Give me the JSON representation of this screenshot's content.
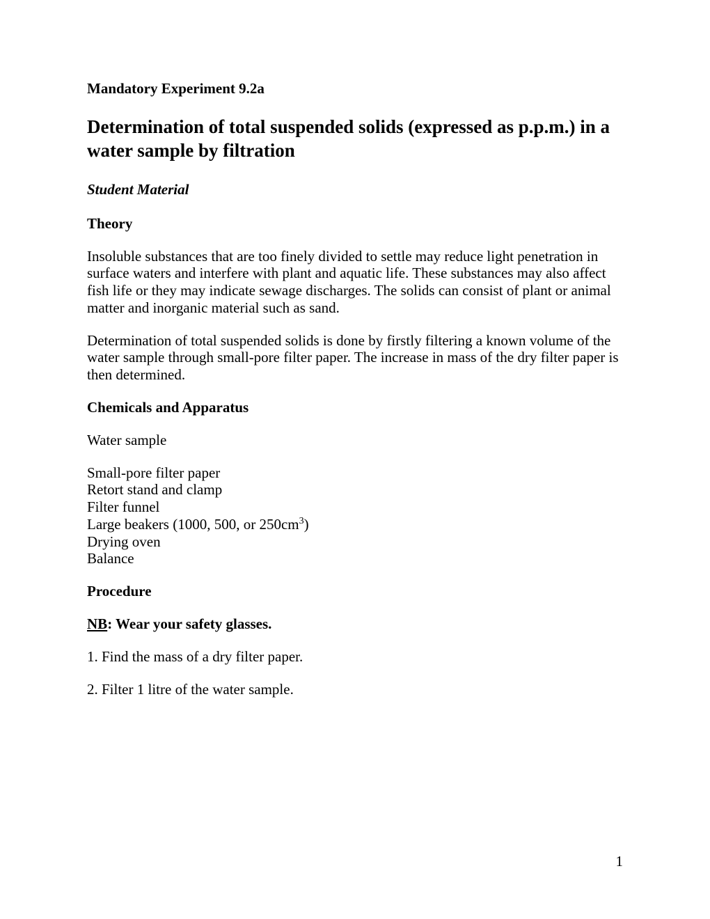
{
  "experiment_label": "Mandatory Experiment 9.2a",
  "main_title": "Determination of total suspended solids (expressed as p.p.m.) in a water sample by filtration",
  "student_material": "Student Material",
  "theory": {
    "heading": "Theory",
    "para1": "Insoluble substances that are too finely divided to settle may reduce light penetration in surface waters and interfere with plant and aquatic life. These substances may also affect fish life or they may indicate sewage discharges. The solids can consist of plant or animal matter and inorganic material such as sand.",
    "para2": "Determination of total suspended solids is done by firstly filtering a known volume of the water sample through small-pore filter paper. The increase in mass of the dry filter paper is then determined."
  },
  "chemicals": {
    "heading": "Chemicals and Apparatus",
    "item_single": "Water sample",
    "item1": "Small-pore filter paper",
    "item2": "Retort stand and clamp",
    "item3": "Filter funnel",
    "item4_pre": "Large beakers (1000, 500, or 250cm",
    "item4_sup": "3",
    "item4_post": ")",
    "item5": "Drying oven",
    "item6": "Balance"
  },
  "procedure": {
    "heading": "Procedure",
    "nb_label": "NB",
    "nb_text": ": Wear your safety glasses.",
    "step1": "1. Find the mass of a dry filter paper.",
    "step2": "2. Filter 1 litre of the water sample."
  },
  "page_number": "1",
  "colors": {
    "background": "#ffffff",
    "text": "#000000"
  },
  "typography": {
    "body_fontsize": 21,
    "title_fontsize": 27,
    "superscript_fontsize": 14,
    "font_family": "Times New Roman"
  }
}
